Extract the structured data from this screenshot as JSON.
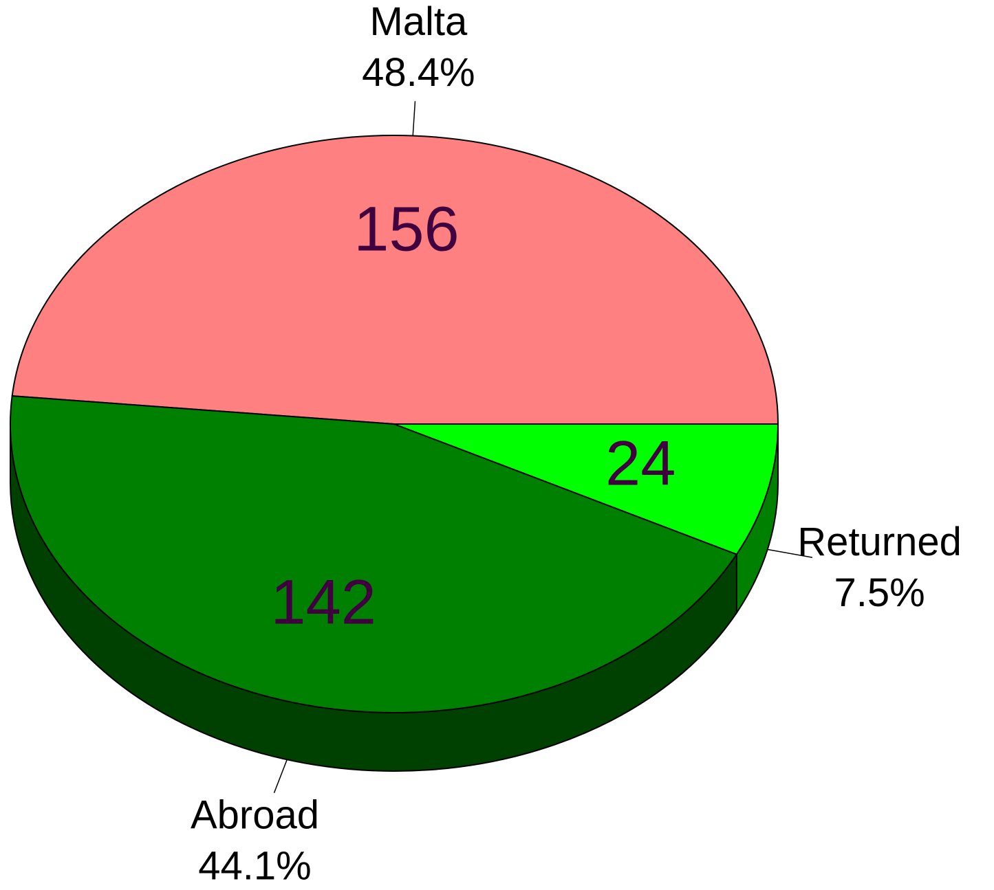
{
  "chart_data": {
    "type": "pie3d",
    "categories": [
      "Malta",
      "Abroad",
      "Returned"
    ],
    "values": [
      156,
      142,
      24
    ],
    "percent_labels": [
      "48.4%",
      "44.1%",
      "7.5%"
    ],
    "colors": [
      "#ff8080",
      "#008000",
      "#00ff00"
    ],
    "side_colors": [
      "#c06060",
      "#004000",
      "#008000"
    ]
  }
}
